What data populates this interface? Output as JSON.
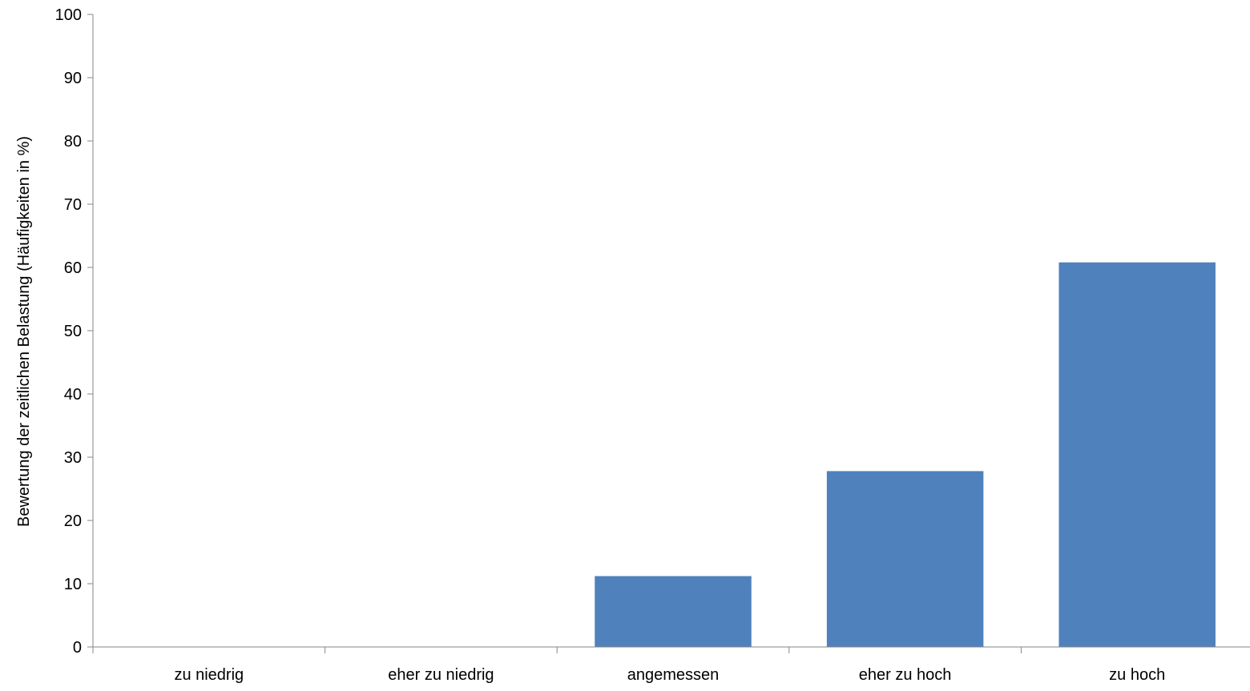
{
  "chart_data": {
    "type": "bar",
    "title": "",
    "xlabel": "",
    "ylabel": "Bewertung der zeitlichen Belastung (Häufigkeiten in %)",
    "categories": [
      "zu niedrig",
      "eher zu niedrig",
      "angemessen",
      "eher zu hoch",
      "zu hoch"
    ],
    "values": [
      0,
      0,
      11.2,
      27.8,
      60.8
    ],
    "ylim": [
      0,
      100
    ],
    "yticks": [
      0,
      10,
      20,
      30,
      40,
      50,
      60,
      70,
      80,
      90,
      100
    ],
    "grid": false,
    "legend": "none",
    "bar_color": "#4F81BD",
    "axis_color": "#868686"
  }
}
